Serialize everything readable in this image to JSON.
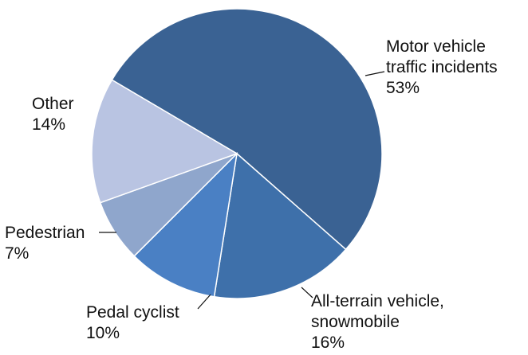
{
  "chart_data": {
    "type": "pie",
    "categories": [
      "Motor vehicle traffic incidents",
      "All-terrain vehicle, snowmobile",
      "Pedal cyclist",
      "Pedestrian",
      "Other"
    ],
    "values": [
      53,
      16,
      10,
      7,
      14
    ],
    "value_labels": [
      "53%",
      "16%",
      "10%",
      "7%",
      "14%"
    ],
    "colors": [
      "#3a6293",
      "#3e70aa",
      "#4a80c4",
      "#8fa6cc",
      "#b9c4e2"
    ]
  }
}
